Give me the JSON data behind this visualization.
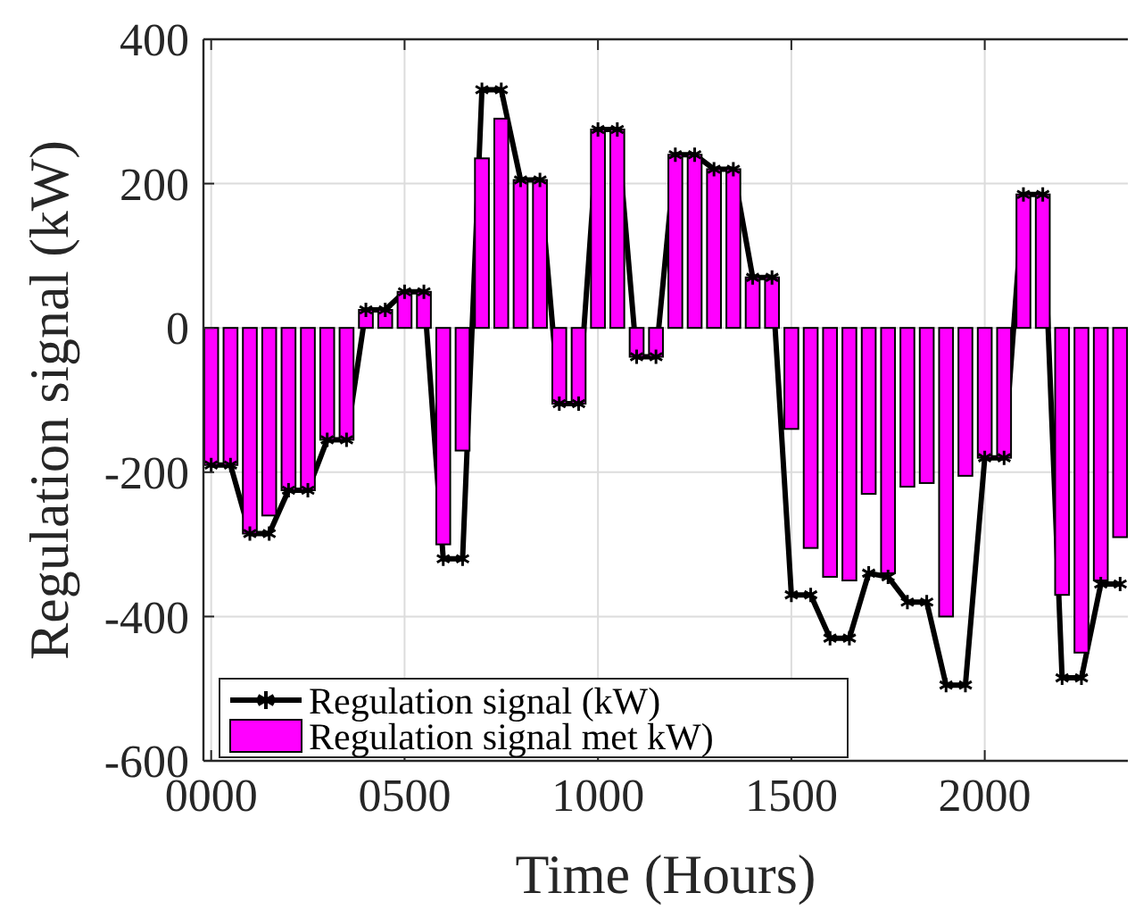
{
  "chart_data": {
    "type": "bar",
    "xlabel": "Time (Hours)",
    "ylabel": "Regulation signal (kW)",
    "x": [
      0,
      50,
      100,
      150,
      200,
      250,
      300,
      350,
      400,
      450,
      500,
      550,
      600,
      650,
      700,
      750,
      800,
      850,
      900,
      950,
      1000,
      1050,
      1100,
      1150,
      1200,
      1250,
      1300,
      1350,
      1400,
      1450,
      1500,
      1550,
      1600,
      1650,
      1700,
      1750,
      1800,
      1850,
      1900,
      1950,
      2000,
      2050,
      2100,
      2150,
      2200,
      2250,
      2300,
      2350
    ],
    "series": [
      {
        "name": "Regulation signal (kW)",
        "type": "line",
        "color": "#000000",
        "marker": "cross",
        "values": [
          -190,
          -190,
          -285,
          -285,
          -225,
          -225,
          -155,
          -155,
          25,
          25,
          50,
          50,
          -320,
          -320,
          330,
          330,
          205,
          205,
          -105,
          -105,
          275,
          275,
          -40,
          -40,
          240,
          240,
          220,
          220,
          70,
          70,
          -370,
          -370,
          -430,
          -430,
          -340,
          -345,
          -380,
          -380,
          -495,
          -495,
          -180,
          -180,
          185,
          185,
          -485,
          -485,
          -355,
          -355
        ]
      },
      {
        "name": "Regulation signal met kW)",
        "color": "#ff00ff",
        "values": [
          -190,
          -190,
          -285,
          -260,
          -225,
          -225,
          -155,
          -155,
          25,
          25,
          50,
          50,
          -300,
          -170,
          235,
          290,
          205,
          205,
          -105,
          -105,
          275,
          275,
          -40,
          -40,
          240,
          240,
          220,
          220,
          70,
          70,
          -140,
          -305,
          -345,
          -350,
          -230,
          -340,
          -220,
          -215,
          -400,
          -205,
          -180,
          -180,
          185,
          185,
          -370,
          -450,
          -350,
          -290
        ]
      }
    ],
    "xlim": [
      -20,
      2370
    ],
    "xticks": [
      {
        "value": 0,
        "label": "0000"
      },
      {
        "value": 500,
        "label": "0500"
      },
      1000,
      1500,
      2000
    ],
    "ylim": [
      -600,
      400
    ],
    "yticks": [
      -600,
      -400,
      -200,
      0,
      200,
      400
    ],
    "grid": true,
    "legend": "bottom left"
  }
}
